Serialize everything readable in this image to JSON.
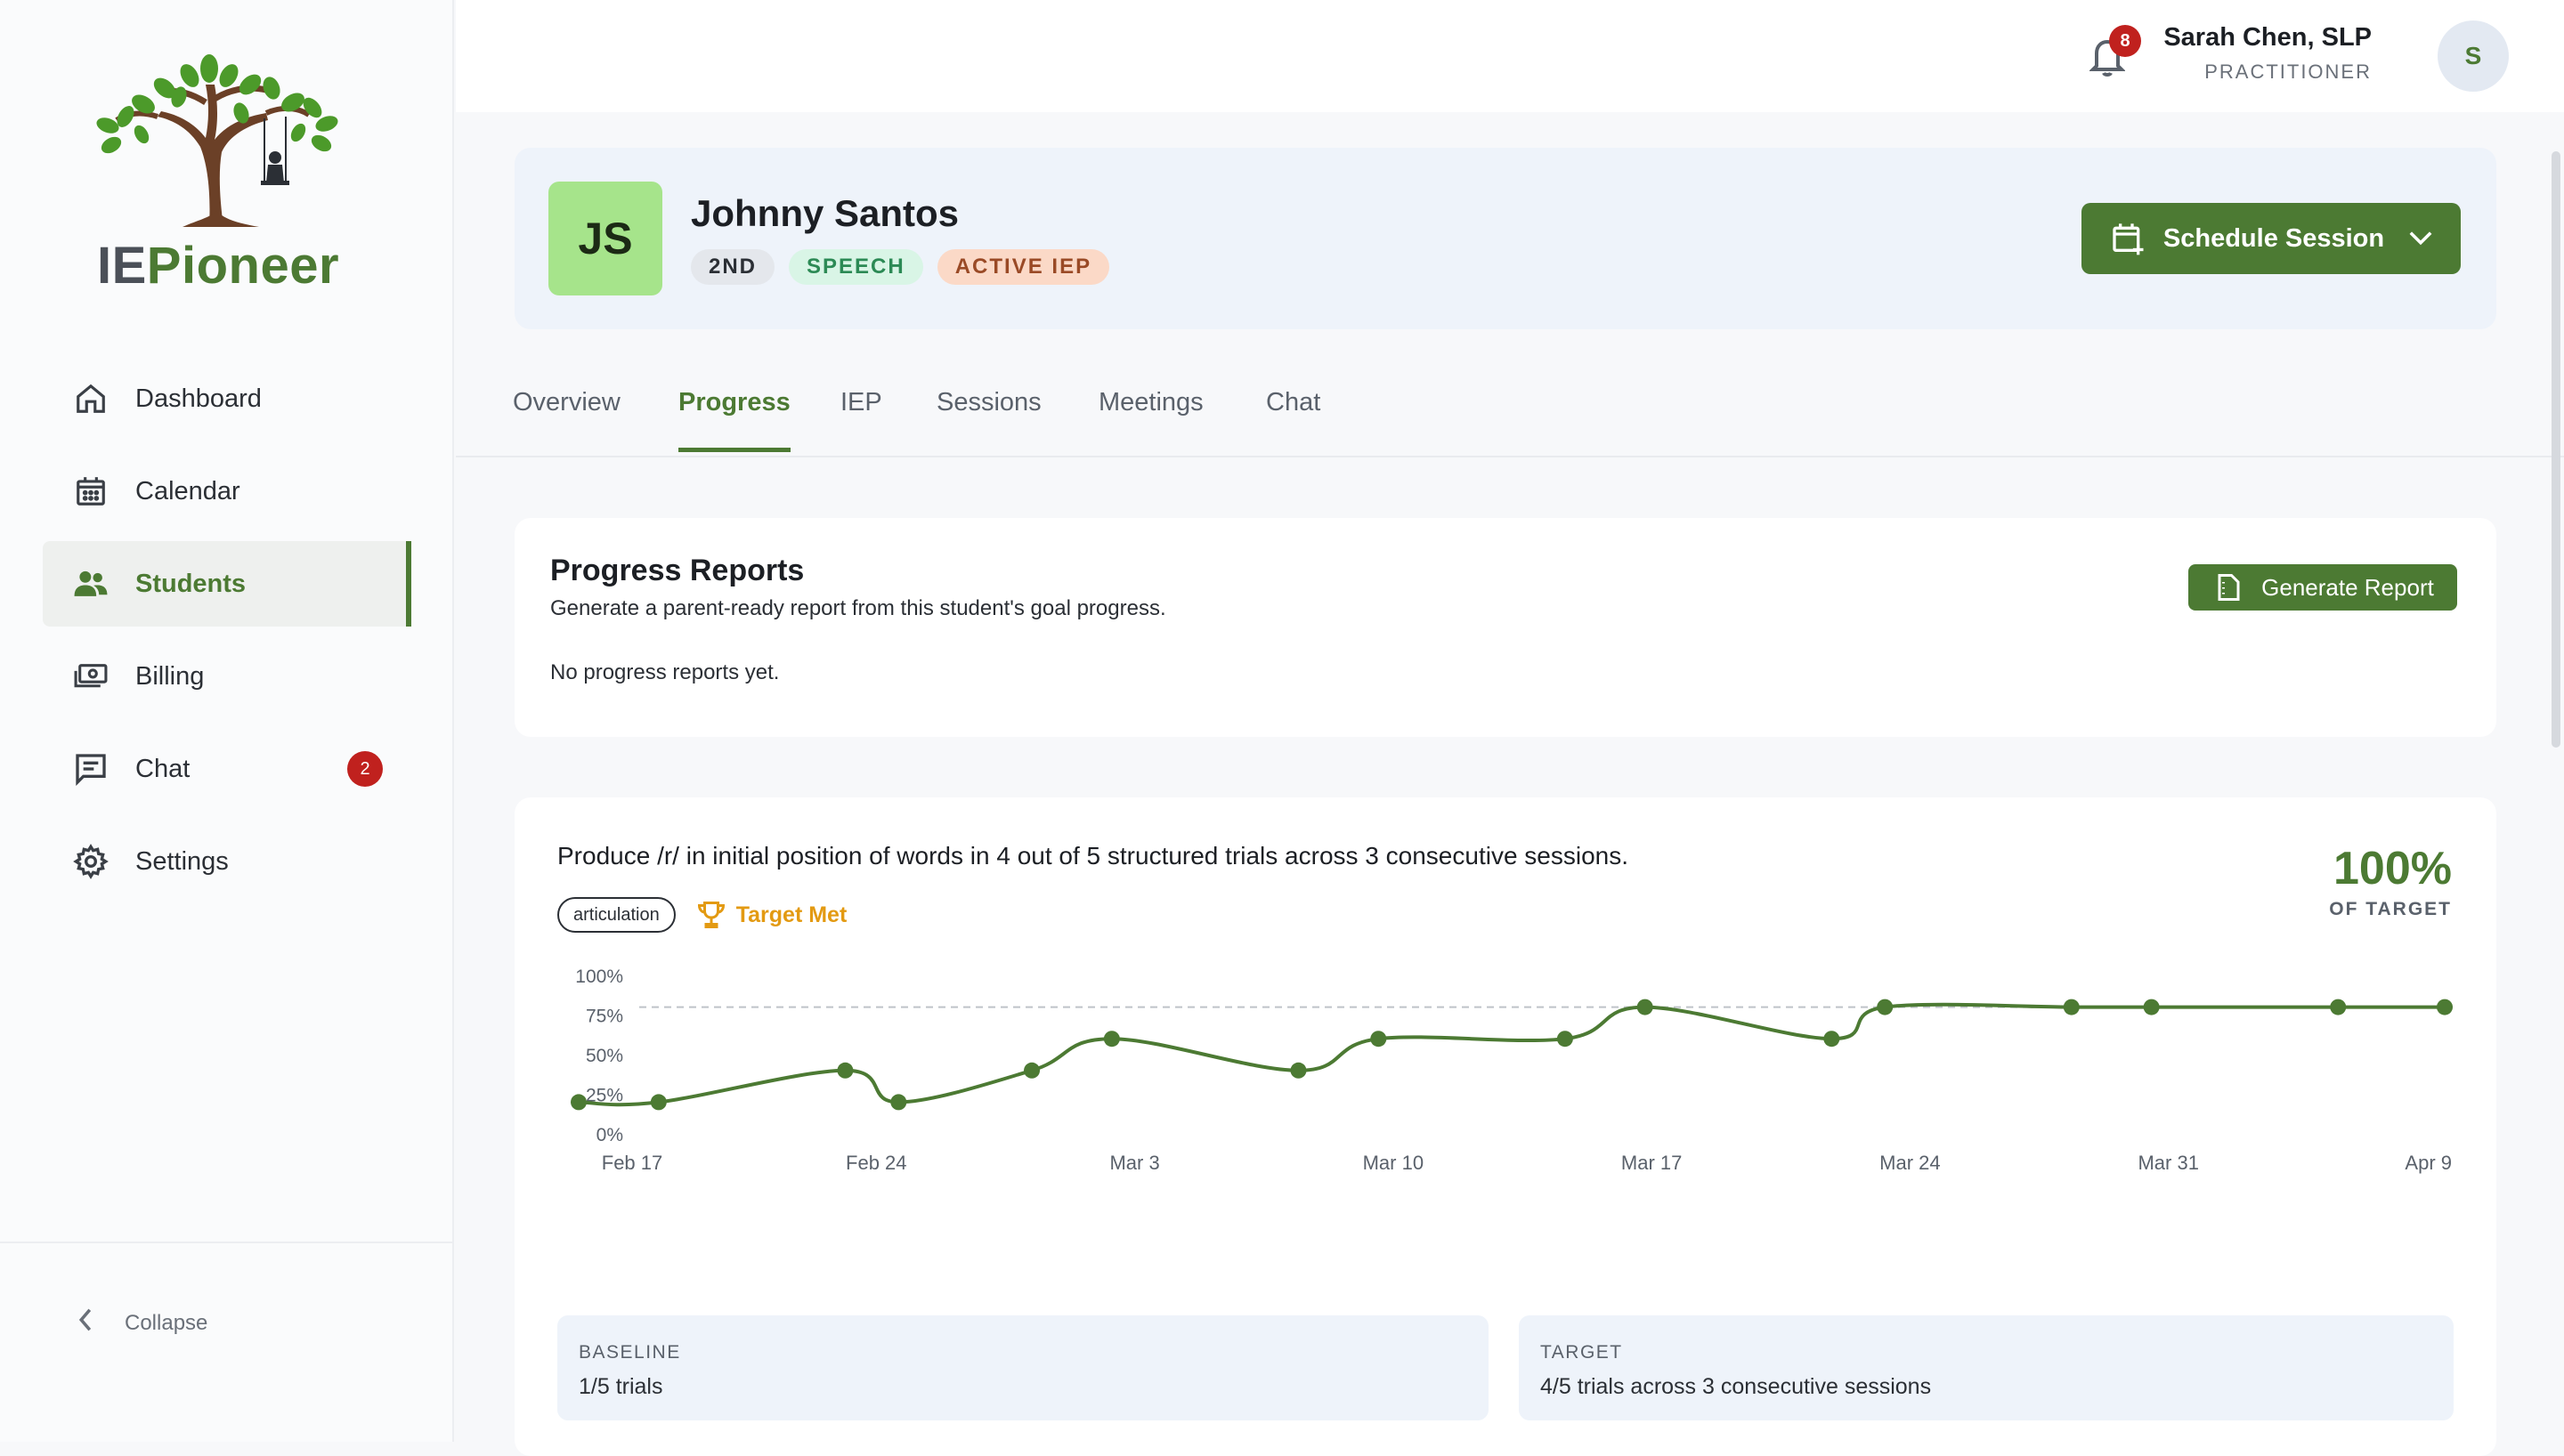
{
  "brand": {
    "name_part1": "IE",
    "name_part2": "Pioneer",
    "logo_icon": "tree-swing-logo"
  },
  "sidebar": {
    "items": [
      {
        "label": "Dashboard",
        "icon": "home-icon",
        "active": false
      },
      {
        "label": "Calendar",
        "icon": "calendar-icon",
        "active": false
      },
      {
        "label": "Students",
        "icon": "users-icon",
        "active": true
      },
      {
        "label": "Billing",
        "icon": "money-icon",
        "active": false
      },
      {
        "label": "Chat",
        "icon": "chat-icon",
        "active": false,
        "badge": "2"
      },
      {
        "label": "Settings",
        "icon": "gear-icon",
        "active": false
      }
    ],
    "collapse_label": "Collapse"
  },
  "topbar": {
    "notification_count": "8",
    "user_name": "Sarah Chen, SLP",
    "user_role": "PRACTITIONER",
    "avatar_initial": "S"
  },
  "student": {
    "initials": "JS",
    "name": "Johnny Santos",
    "tags": {
      "grade": "2ND",
      "subject": "SPEECH",
      "status": "ACTIVE IEP"
    },
    "schedule_button": "Schedule Session"
  },
  "tabs": [
    {
      "label": "Overview",
      "active": false
    },
    {
      "label": "Progress",
      "active": true
    },
    {
      "label": "IEP",
      "active": false
    },
    {
      "label": "Sessions",
      "active": false
    },
    {
      "label": "Meetings",
      "active": false
    },
    {
      "label": "Chat",
      "active": false
    }
  ],
  "reports": {
    "title": "Progress Reports",
    "subtitle": "Generate a parent-ready report from this student's goal progress.",
    "empty": "No progress reports yet.",
    "button": "Generate Report"
  },
  "goal": {
    "text": "Produce /r/ in initial position of words in 4 out of 5 structured trials across 3 consecutive sessions.",
    "category": "articulation",
    "status": "Target Met",
    "percent": "100%",
    "percent_label": "OF TARGET",
    "baseline_label": "BASELINE",
    "baseline_value": "1/5 trials",
    "target_label": "TARGET",
    "target_value": "4/5 trials across 3 consecutive sessions"
  },
  "chart_data": {
    "type": "line",
    "x_tick_labels": [
      "Feb 17",
      "Feb 24",
      "Mar 3",
      "Mar 10",
      "Mar 17",
      "Mar 24",
      "Mar 31",
      "Apr 9"
    ],
    "y_tick_labels": [
      "100%",
      "75%",
      "50%",
      "25%",
      "0%"
    ],
    "ylim": [
      0,
      100
    ],
    "xlim": [
      "Feb 17",
      "Apr 9"
    ],
    "target_line": 80,
    "points": [
      {
        "x": "Feb 17",
        "y": 20
      },
      {
        "x": "Feb 20",
        "y": 20
      },
      {
        "x": "Feb 27",
        "y": 40
      },
      {
        "x": "Mar 1",
        "y": 20
      },
      {
        "x": "Mar 6",
        "y": 40
      },
      {
        "x": "Mar 9",
        "y": 60
      },
      {
        "x": "Mar 16",
        "y": 40
      },
      {
        "x": "Mar 19",
        "y": 60
      },
      {
        "x": "Mar 26",
        "y": 60
      },
      {
        "x": "Mar 29",
        "y": 80
      },
      {
        "x": "Apr 5",
        "y": 60
      },
      {
        "x": "Apr 7",
        "y": 80
      },
      {
        "x": "Apr 14",
        "y": 80
      },
      {
        "x": "Apr 17",
        "y": 80
      },
      {
        "x": "Apr 24",
        "y": 80
      },
      {
        "x": "Apr 28",
        "y": 80
      }
    ],
    "line_color": "#4c7a33",
    "target_color": "#bfc3c9"
  }
}
